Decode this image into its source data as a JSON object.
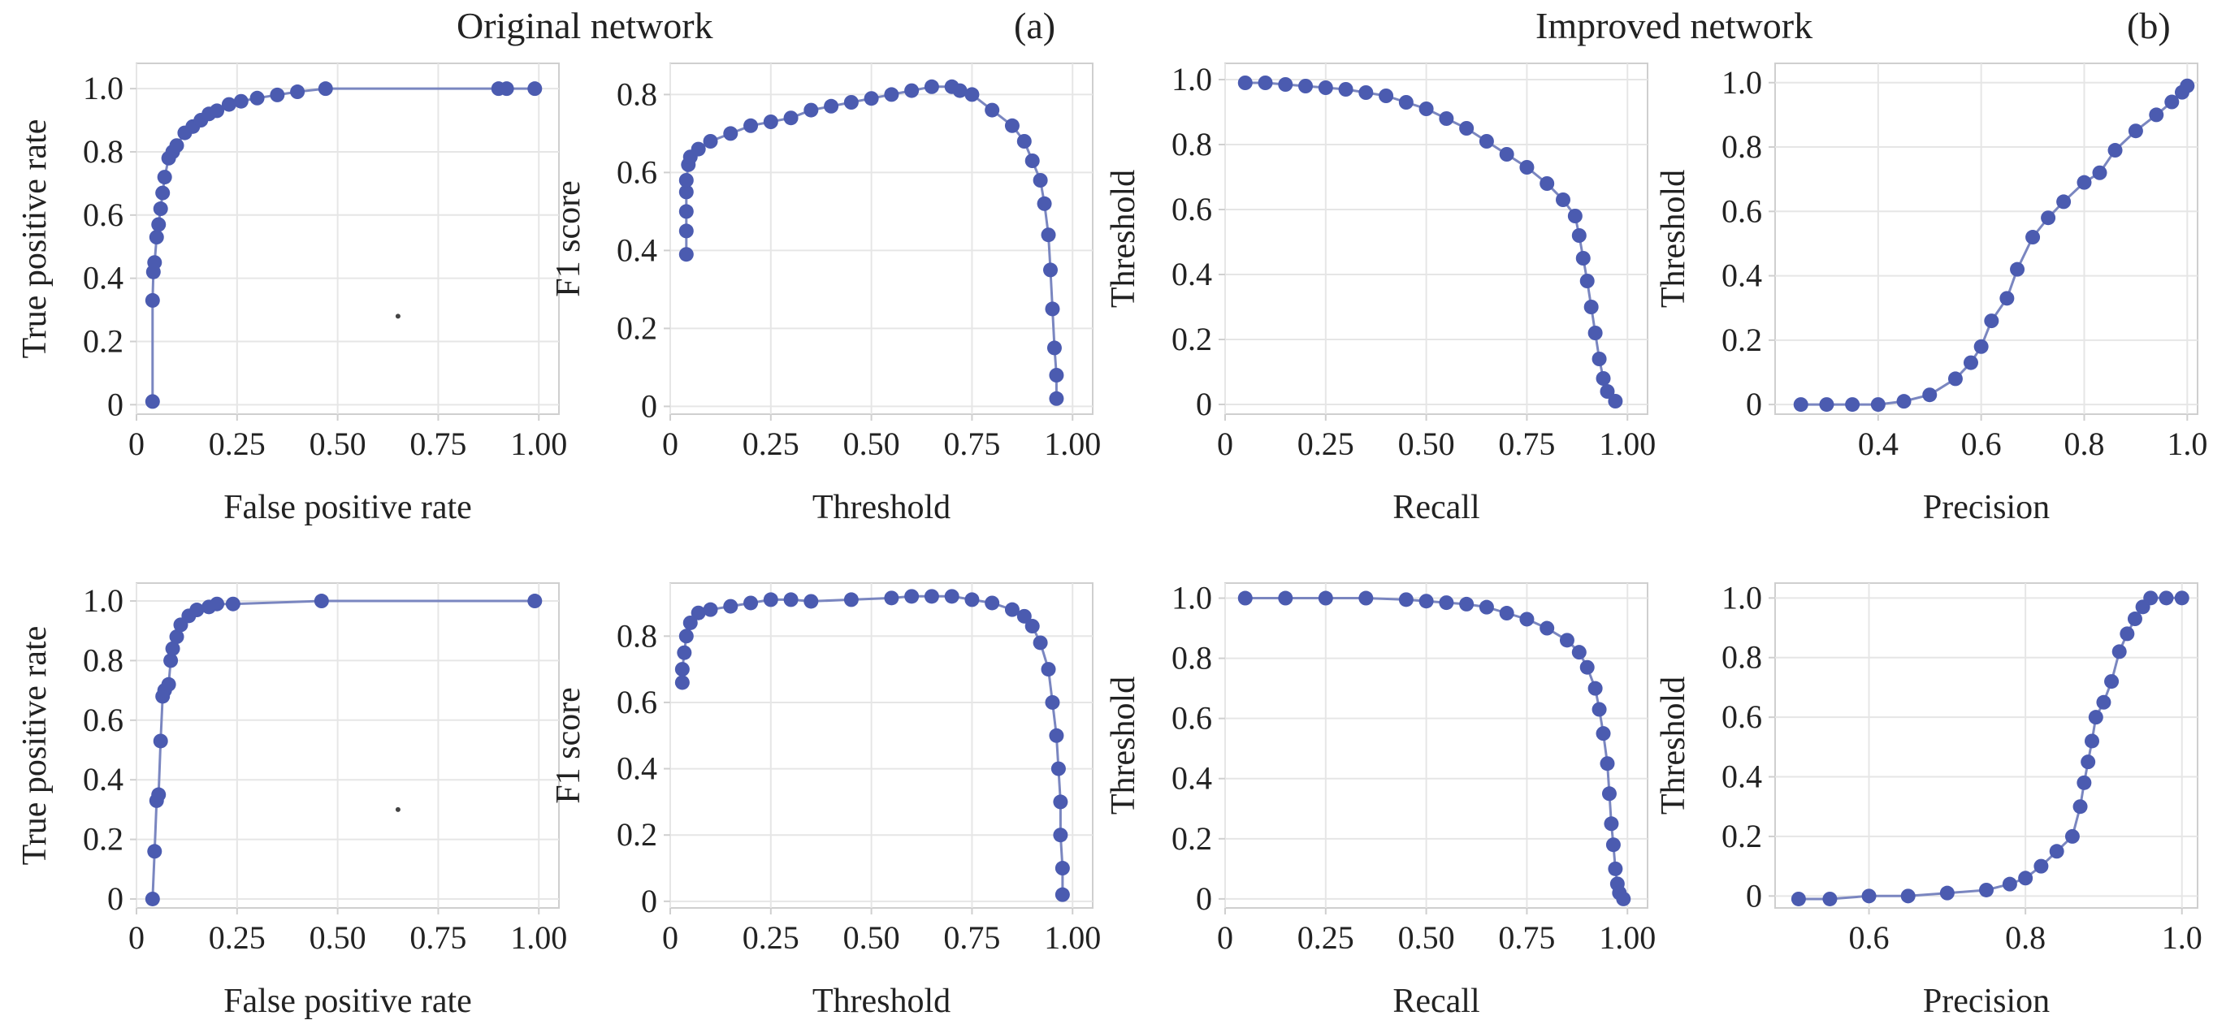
{
  "headers": {
    "original": "Original network",
    "improved": "Improved network",
    "label_a": "(a)",
    "label_b": "(b)"
  },
  "colors": {
    "marker": "#4b5bb0",
    "line": "#7a86c0",
    "grid": "#e6e6e6",
    "frame": "#cfcfcf"
  },
  "chart_data": [
    {
      "id": "orig-roc",
      "type": "scatter",
      "connected": true,
      "xlabel": "False positive rate",
      "ylabel": "True positive rate",
      "xlim": [
        0,
        1.05
      ],
      "ylim": [
        -0.03,
        1.08
      ],
      "xticks": [
        {
          "v": 0,
          "t": "0"
        },
        {
          "v": 0.25,
          "t": "0.25"
        },
        {
          "v": 0.5,
          "t": "0.50"
        },
        {
          "v": 0.75,
          "t": "0.75"
        },
        {
          "v": 1.0,
          "t": "1.00"
        }
      ],
      "yticks": [
        {
          "v": 0,
          "t": "0"
        },
        {
          "v": 0.2,
          "t": "0.2"
        },
        {
          "v": 0.4,
          "t": "0.4"
        },
        {
          "v": 0.6,
          "t": "0.6"
        },
        {
          "v": 0.8,
          "t": "0.8"
        },
        {
          "v": 1.0,
          "t": "1.0"
        }
      ],
      "points": [
        [
          0.04,
          0.01
        ],
        [
          0.04,
          0.33
        ],
        [
          0.042,
          0.42
        ],
        [
          0.045,
          0.45
        ],
        [
          0.05,
          0.53
        ],
        [
          0.055,
          0.57
        ],
        [
          0.06,
          0.62
        ],
        [
          0.065,
          0.67
        ],
        [
          0.07,
          0.72
        ],
        [
          0.08,
          0.78
        ],
        [
          0.09,
          0.8
        ],
        [
          0.1,
          0.82
        ],
        [
          0.12,
          0.86
        ],
        [
          0.14,
          0.88
        ],
        [
          0.16,
          0.9
        ],
        [
          0.18,
          0.92
        ],
        [
          0.2,
          0.93
        ],
        [
          0.23,
          0.95
        ],
        [
          0.26,
          0.96
        ],
        [
          0.3,
          0.97
        ],
        [
          0.35,
          0.98
        ],
        [
          0.4,
          0.99
        ],
        [
          0.47,
          1.0
        ],
        [
          0.9,
          1.0
        ],
        [
          0.92,
          1.0
        ],
        [
          0.99,
          1.0
        ]
      ],
      "dot": [
        0.65,
        0.28
      ]
    },
    {
      "id": "orig-f1",
      "type": "scatter",
      "connected": true,
      "xlabel": "Threshold",
      "ylabel": "F1 score",
      "xlim": [
        0,
        1.05
      ],
      "ylim": [
        -0.02,
        0.88
      ],
      "xticks": [
        {
          "v": 0,
          "t": "0"
        },
        {
          "v": 0.25,
          "t": "0.25"
        },
        {
          "v": 0.5,
          "t": "0.50"
        },
        {
          "v": 0.75,
          "t": "0.75"
        },
        {
          "v": 1.0,
          "t": "1.00"
        }
      ],
      "yticks": [
        {
          "v": 0,
          "t": "0"
        },
        {
          "v": 0.2,
          "t": "0.2"
        },
        {
          "v": 0.4,
          "t": "0.4"
        },
        {
          "v": 0.6,
          "t": "0.6"
        },
        {
          "v": 0.8,
          "t": "0.8"
        }
      ],
      "points": [
        [
          0.04,
          0.39
        ],
        [
          0.04,
          0.45
        ],
        [
          0.04,
          0.5
        ],
        [
          0.04,
          0.55
        ],
        [
          0.04,
          0.58
        ],
        [
          0.045,
          0.62
        ],
        [
          0.05,
          0.64
        ],
        [
          0.07,
          0.66
        ],
        [
          0.1,
          0.68
        ],
        [
          0.15,
          0.7
        ],
        [
          0.2,
          0.72
        ],
        [
          0.25,
          0.73
        ],
        [
          0.3,
          0.74
        ],
        [
          0.35,
          0.76
        ],
        [
          0.4,
          0.77
        ],
        [
          0.45,
          0.78
        ],
        [
          0.5,
          0.79
        ],
        [
          0.55,
          0.8
        ],
        [
          0.6,
          0.81
        ],
        [
          0.65,
          0.82
        ],
        [
          0.7,
          0.82
        ],
        [
          0.72,
          0.81
        ],
        [
          0.75,
          0.8
        ],
        [
          0.8,
          0.76
        ],
        [
          0.85,
          0.72
        ],
        [
          0.88,
          0.68
        ],
        [
          0.9,
          0.63
        ],
        [
          0.92,
          0.58
        ],
        [
          0.93,
          0.52
        ],
        [
          0.94,
          0.44
        ],
        [
          0.945,
          0.35
        ],
        [
          0.95,
          0.25
        ],
        [
          0.955,
          0.15
        ],
        [
          0.96,
          0.08
        ],
        [
          0.96,
          0.02
        ]
      ]
    },
    {
      "id": "orig-recall",
      "type": "scatter",
      "connected": true,
      "xlabel": "Recall",
      "ylabel": "Threshold",
      "xlim": [
        0,
        1.05
      ],
      "ylim": [
        -0.03,
        1.05
      ],
      "xticks": [
        {
          "v": 0,
          "t": "0"
        },
        {
          "v": 0.25,
          "t": "0.25"
        },
        {
          "v": 0.5,
          "t": "0.50"
        },
        {
          "v": 0.75,
          "t": "0.75"
        },
        {
          "v": 1.0,
          "t": "1.00"
        }
      ],
      "yticks": [
        {
          "v": 0,
          "t": "0"
        },
        {
          "v": 0.2,
          "t": "0.2"
        },
        {
          "v": 0.4,
          "t": "0.4"
        },
        {
          "v": 0.6,
          "t": "0.6"
        },
        {
          "v": 0.8,
          "t": "0.8"
        },
        {
          "v": 1.0,
          "t": "1.0"
        }
      ],
      "points": [
        [
          0.05,
          0.99
        ],
        [
          0.1,
          0.99
        ],
        [
          0.15,
          0.985
        ],
        [
          0.2,
          0.98
        ],
        [
          0.25,
          0.975
        ],
        [
          0.3,
          0.97
        ],
        [
          0.35,
          0.96
        ],
        [
          0.4,
          0.95
        ],
        [
          0.45,
          0.93
        ],
        [
          0.5,
          0.91
        ],
        [
          0.55,
          0.88
        ],
        [
          0.6,
          0.85
        ],
        [
          0.65,
          0.81
        ],
        [
          0.7,
          0.77
        ],
        [
          0.75,
          0.73
        ],
        [
          0.8,
          0.68
        ],
        [
          0.84,
          0.63
        ],
        [
          0.87,
          0.58
        ],
        [
          0.88,
          0.52
        ],
        [
          0.89,
          0.45
        ],
        [
          0.9,
          0.38
        ],
        [
          0.91,
          0.3
        ],
        [
          0.92,
          0.22
        ],
        [
          0.93,
          0.14
        ],
        [
          0.94,
          0.08
        ],
        [
          0.95,
          0.04
        ],
        [
          0.97,
          0.01
        ]
      ]
    },
    {
      "id": "orig-precision",
      "type": "scatter",
      "connected": true,
      "xlabel": "Precision",
      "ylabel": "Threshold",
      "xlim": [
        0.2,
        1.02
      ],
      "ylim": [
        -0.03,
        1.06
      ],
      "xticks": [
        {
          "v": 0.4,
          "t": "0.4"
        },
        {
          "v": 0.6,
          "t": "0.6"
        },
        {
          "v": 0.8,
          "t": "0.8"
        },
        {
          "v": 1.0,
          "t": "1.0"
        }
      ],
      "yticks": [
        {
          "v": 0,
          "t": "0"
        },
        {
          "v": 0.2,
          "t": "0.2"
        },
        {
          "v": 0.4,
          "t": "0.4"
        },
        {
          "v": 0.6,
          "t": "0.6"
        },
        {
          "v": 0.8,
          "t": "0.8"
        },
        {
          "v": 1.0,
          "t": "1.0"
        }
      ],
      "points": [
        [
          0.25,
          0.0
        ],
        [
          0.3,
          0.0
        ],
        [
          0.35,
          0.0
        ],
        [
          0.4,
          0.0
        ],
        [
          0.45,
          0.01
        ],
        [
          0.5,
          0.03
        ],
        [
          0.55,
          0.08
        ],
        [
          0.58,
          0.13
        ],
        [
          0.6,
          0.18
        ],
        [
          0.62,
          0.26
        ],
        [
          0.65,
          0.33
        ],
        [
          0.67,
          0.42
        ],
        [
          0.7,
          0.52
        ],
        [
          0.73,
          0.58
        ],
        [
          0.76,
          0.63
        ],
        [
          0.8,
          0.69
        ],
        [
          0.83,
          0.72
        ],
        [
          0.86,
          0.79
        ],
        [
          0.9,
          0.85
        ],
        [
          0.94,
          0.9
        ],
        [
          0.97,
          0.94
        ],
        [
          0.99,
          0.97
        ],
        [
          1.0,
          0.99
        ]
      ]
    },
    {
      "id": "imp-roc",
      "type": "scatter",
      "connected": true,
      "xlabel": "False positive rate",
      "ylabel": "True positive rate",
      "xlim": [
        0,
        1.05
      ],
      "ylim": [
        -0.03,
        1.06
      ],
      "xticks": [
        {
          "v": 0,
          "t": "0"
        },
        {
          "v": 0.25,
          "t": "0.25"
        },
        {
          "v": 0.5,
          "t": "0.50"
        },
        {
          "v": 0.75,
          "t": "0.75"
        },
        {
          "v": 1.0,
          "t": "1.00"
        }
      ],
      "yticks": [
        {
          "v": 0,
          "t": "0"
        },
        {
          "v": 0.2,
          "t": "0.2"
        },
        {
          "v": 0.4,
          "t": "0.4"
        },
        {
          "v": 0.6,
          "t": "0.6"
        },
        {
          "v": 0.8,
          "t": "0.8"
        },
        {
          "v": 1.0,
          "t": "1.0"
        }
      ],
      "points": [
        [
          0.04,
          0.0
        ],
        [
          0.045,
          0.16
        ],
        [
          0.05,
          0.33
        ],
        [
          0.055,
          0.35
        ],
        [
          0.06,
          0.53
        ],
        [
          0.065,
          0.68
        ],
        [
          0.07,
          0.7
        ],
        [
          0.08,
          0.72
        ],
        [
          0.085,
          0.8
        ],
        [
          0.09,
          0.84
        ],
        [
          0.1,
          0.88
        ],
        [
          0.11,
          0.92
        ],
        [
          0.13,
          0.95
        ],
        [
          0.15,
          0.97
        ],
        [
          0.18,
          0.98
        ],
        [
          0.2,
          0.99
        ],
        [
          0.24,
          0.99
        ],
        [
          0.46,
          1.0
        ],
        [
          0.99,
          1.0
        ]
      ],
      "dot": [
        0.65,
        0.3
      ]
    },
    {
      "id": "imp-f1",
      "type": "scatter",
      "connected": true,
      "xlabel": "Threshold",
      "ylabel": "F1 score",
      "xlim": [
        0,
        1.05
      ],
      "ylim": [
        -0.02,
        0.96
      ],
      "xticks": [
        {
          "v": 0,
          "t": "0"
        },
        {
          "v": 0.25,
          "t": "0.25"
        },
        {
          "v": 0.5,
          "t": "0.50"
        },
        {
          "v": 0.75,
          "t": "0.75"
        },
        {
          "v": 1.0,
          "t": "1.00"
        }
      ],
      "yticks": [
        {
          "v": 0,
          "t": "0"
        },
        {
          "v": 0.2,
          "t": "0.2"
        },
        {
          "v": 0.4,
          "t": "0.4"
        },
        {
          "v": 0.6,
          "t": "0.6"
        },
        {
          "v": 0.8,
          "t": "0.8"
        }
      ],
      "points": [
        [
          0.03,
          0.66
        ],
        [
          0.03,
          0.7
        ],
        [
          0.035,
          0.75
        ],
        [
          0.04,
          0.8
        ],
        [
          0.05,
          0.84
        ],
        [
          0.07,
          0.87
        ],
        [
          0.1,
          0.88
        ],
        [
          0.15,
          0.89
        ],
        [
          0.2,
          0.9
        ],
        [
          0.25,
          0.91
        ],
        [
          0.3,
          0.91
        ],
        [
          0.35,
          0.905
        ],
        [
          0.45,
          0.91
        ],
        [
          0.55,
          0.915
        ],
        [
          0.6,
          0.92
        ],
        [
          0.65,
          0.92
        ],
        [
          0.7,
          0.92
        ],
        [
          0.75,
          0.91
        ],
        [
          0.8,
          0.9
        ],
        [
          0.85,
          0.88
        ],
        [
          0.88,
          0.86
        ],
        [
          0.9,
          0.83
        ],
        [
          0.92,
          0.78
        ],
        [
          0.94,
          0.7
        ],
        [
          0.95,
          0.6
        ],
        [
          0.96,
          0.5
        ],
        [
          0.965,
          0.4
        ],
        [
          0.97,
          0.3
        ],
        [
          0.97,
          0.2
        ],
        [
          0.975,
          0.1
        ],
        [
          0.975,
          0.02
        ]
      ]
    },
    {
      "id": "imp-recall",
      "type": "scatter",
      "connected": true,
      "xlabel": "Recall",
      "ylabel": "Threshold",
      "xlim": [
        0,
        1.05
      ],
      "ylim": [
        -0.03,
        1.05
      ],
      "xticks": [
        {
          "v": 0,
          "t": "0"
        },
        {
          "v": 0.25,
          "t": "0.25"
        },
        {
          "v": 0.5,
          "t": "0.50"
        },
        {
          "v": 0.75,
          "t": "0.75"
        },
        {
          "v": 1.0,
          "t": "1.00"
        }
      ],
      "yticks": [
        {
          "v": 0,
          "t": "0"
        },
        {
          "v": 0.2,
          "t": "0.2"
        },
        {
          "v": 0.4,
          "t": "0.4"
        },
        {
          "v": 0.6,
          "t": "0.6"
        },
        {
          "v": 0.8,
          "t": "0.8"
        },
        {
          "v": 1.0,
          "t": "1.0"
        }
      ],
      "points": [
        [
          0.05,
          1.0
        ],
        [
          0.15,
          1.0
        ],
        [
          0.25,
          1.0
        ],
        [
          0.35,
          1.0
        ],
        [
          0.45,
          0.995
        ],
        [
          0.5,
          0.99
        ],
        [
          0.55,
          0.985
        ],
        [
          0.6,
          0.98
        ],
        [
          0.65,
          0.97
        ],
        [
          0.7,
          0.95
        ],
        [
          0.75,
          0.93
        ],
        [
          0.8,
          0.9
        ],
        [
          0.85,
          0.86
        ],
        [
          0.88,
          0.82
        ],
        [
          0.9,
          0.77
        ],
        [
          0.92,
          0.7
        ],
        [
          0.93,
          0.63
        ],
        [
          0.94,
          0.55
        ],
        [
          0.95,
          0.45
        ],
        [
          0.955,
          0.35
        ],
        [
          0.96,
          0.25
        ],
        [
          0.965,
          0.18
        ],
        [
          0.97,
          0.1
        ],
        [
          0.975,
          0.05
        ],
        [
          0.98,
          0.02
        ],
        [
          0.99,
          0.0
        ]
      ]
    },
    {
      "id": "imp-precision",
      "type": "scatter",
      "connected": true,
      "xlabel": "Precision",
      "ylabel": "Threshold",
      "xlim": [
        0.48,
        1.02
      ],
      "ylim": [
        -0.04,
        1.05
      ],
      "xticks": [
        {
          "v": 0.6,
          "t": "0.6"
        },
        {
          "v": 0.8,
          "t": "0.8"
        },
        {
          "v": 1.0,
          "t": "1.0"
        }
      ],
      "yticks": [
        {
          "v": 0,
          "t": "0"
        },
        {
          "v": 0.2,
          "t": "0.2"
        },
        {
          "v": 0.4,
          "t": "0.4"
        },
        {
          "v": 0.6,
          "t": "0.6"
        },
        {
          "v": 0.8,
          "t": "0.8"
        },
        {
          "v": 1.0,
          "t": "1.0"
        }
      ],
      "points": [
        [
          0.51,
          -0.01
        ],
        [
          0.55,
          -0.01
        ],
        [
          0.6,
          0.0
        ],
        [
          0.65,
          0.0
        ],
        [
          0.7,
          0.01
        ],
        [
          0.75,
          0.02
        ],
        [
          0.78,
          0.04
        ],
        [
          0.8,
          0.06
        ],
        [
          0.82,
          0.1
        ],
        [
          0.84,
          0.15
        ],
        [
          0.86,
          0.2
        ],
        [
          0.87,
          0.3
        ],
        [
          0.875,
          0.38
        ],
        [
          0.88,
          0.45
        ],
        [
          0.885,
          0.52
        ],
        [
          0.89,
          0.6
        ],
        [
          0.9,
          0.65
        ],
        [
          0.91,
          0.72
        ],
        [
          0.92,
          0.82
        ],
        [
          0.93,
          0.88
        ],
        [
          0.94,
          0.93
        ],
        [
          0.95,
          0.97
        ],
        [
          0.96,
          1.0
        ],
        [
          0.98,
          1.0
        ],
        [
          1.0,
          1.0
        ]
      ]
    }
  ]
}
